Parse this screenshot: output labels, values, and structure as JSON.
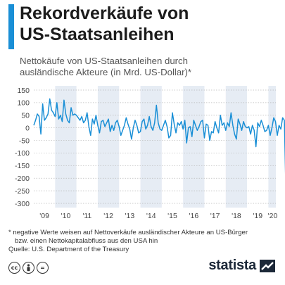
{
  "header": {
    "title_line1": "Rekordverkäufe von",
    "title_line2": "US-Staatsanleihen",
    "subtitle_line1": "Nettokäufe von US-Staatsanleihen durch",
    "subtitle_line2": "ausländische Akteure (in Mrd. US-Dollar)*"
  },
  "footnote": {
    "line1": "* negative Werte weisen auf Nettoverkäufe ausländischer Akteure an US-Bürger",
    "line2": "   bzw. einen Nettokapitalabfluss aus den USA hin",
    "source": "Quelle: U.S. Department of the Treasury"
  },
  "brand": {
    "name": "statista"
  },
  "colors": {
    "accent": "#1a8fd6",
    "line": "#1a8fd6",
    "band": "#e6ecf4",
    "grid": "#b8b8b8"
  },
  "icons": [
    "cc-icon",
    "by-icon",
    "nd-icon",
    "statista-logo-icon"
  ],
  "chart_data": {
    "type": "line",
    "title": "",
    "xlabel": "",
    "ylabel": "",
    "ylim": [
      -300,
      150
    ],
    "yticks": [
      150,
      100,
      50,
      0,
      -50,
      -100,
      -150,
      -200,
      -250,
      -300
    ],
    "xtick_labels": [
      "'09",
      "'10",
      "'11",
      "'12",
      "'13",
      "'14",
      "'15",
      "'16",
      "'17",
      "'18",
      "'19",
      "'20"
    ],
    "x_start": "2009-01",
    "x_end": "2020-04",
    "shaded_years": [
      "2010",
      "2012",
      "2014",
      "2016",
      "2018",
      "2020"
    ],
    "series": [
      {
        "values": [
          10,
          30,
          55,
          45,
          -25,
          95,
          30,
          40,
          55,
          115,
          70,
          60,
          45,
          100,
          35,
          50,
          25,
          110,
          55,
          30,
          20,
          80,
          50,
          55,
          50,
          40,
          30,
          45,
          20,
          30,
          60,
          5,
          -30,
          35,
          15,
          50,
          10,
          -20,
          25,
          30,
          5,
          20,
          35,
          -15,
          10,
          -10,
          20,
          30,
          5,
          -30,
          -10,
          10,
          40,
          15,
          -5,
          -45,
          0,
          30,
          10,
          -20,
          -15,
          25,
          35,
          -5,
          10,
          45,
          5,
          -10,
          20,
          90,
          20,
          -5,
          -10,
          10,
          30,
          5,
          -40,
          -30,
          60,
          15,
          -20,
          20,
          10,
          25,
          -5,
          30,
          -60,
          0,
          5,
          -35,
          30,
          10,
          -10,
          5,
          25,
          30,
          -40,
          15,
          10,
          -50,
          -15,
          -20,
          25,
          0,
          -20,
          50,
          10,
          20,
          -10,
          20,
          5,
          60,
          10,
          -25,
          -45,
          35,
          15,
          -10,
          25,
          5,
          0,
          5,
          -25,
          10,
          -10,
          -75,
          20,
          5,
          30,
          10,
          -15,
          -10,
          10,
          -30,
          0,
          40,
          25,
          -30,
          10,
          -5,
          40,
          30,
          -300,
          -30
        ]
      }
    ]
  }
}
